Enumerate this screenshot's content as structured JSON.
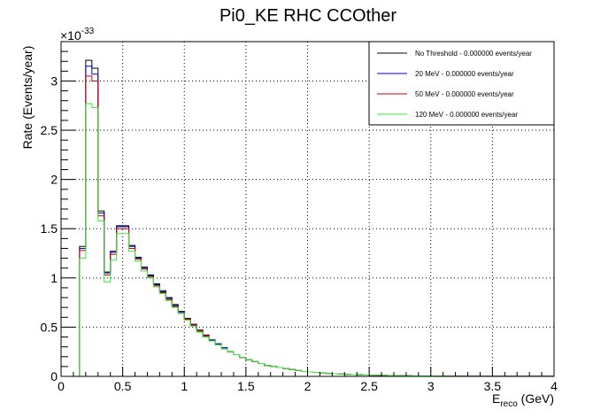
{
  "chart_data": {
    "type": "line",
    "title": "Pi0_KE RHC CCOther",
    "xlabel_main": "E",
    "xlabel_sub": "reco",
    "xlabel_unit": " (GeV)",
    "ylabel": "Rate (Events/year)",
    "y_exponent_base": "×10",
    "y_exponent_power": "-33",
    "xlim": [
      0,
      4
    ],
    "ylim": [
      0,
      3.4
    ],
    "x_ticks": [
      0,
      0.5,
      1,
      1.5,
      2,
      2.5,
      3,
      3.5,
      4
    ],
    "x_tick_labels": [
      "0",
      "0.5",
      "1",
      "1.5",
      "2",
      "2.5",
      "3",
      "3.5",
      "4"
    ],
    "y_ticks": [
      0,
      0.5,
      1,
      1.5,
      2,
      2.5,
      3
    ],
    "y_tick_labels": [
      "0",
      "0.5",
      "1",
      "1.5",
      "2",
      "2.5",
      "3"
    ],
    "grid": true,
    "legend_position": "top-right",
    "bin_width": 0.05,
    "bin_edges_start": 0,
    "series": [
      {
        "name": "No Threshold - 0.000000 events/year",
        "color": "#000000",
        "values": [
          0,
          0,
          0,
          1.32,
          3.21,
          3.13,
          1.68,
          1.06,
          1.27,
          1.53,
          1.53,
          1.33,
          1.21,
          1.11,
          1.03,
          0.94,
          0.87,
          0.8,
          0.73,
          0.66,
          0.59,
          0.53,
          0.47,
          0.42,
          0.37,
          0.33,
          0.29,
          0.25,
          0.22,
          0.19,
          0.17,
          0.15,
          0.13,
          0.11,
          0.1,
          0.09,
          0.08,
          0.07,
          0.06,
          0.05,
          0.045,
          0.04,
          0.035,
          0.03,
          0.027,
          0.024,
          0.021,
          0.018,
          0.016,
          0.014,
          0.012,
          0.011,
          0.01,
          0.009,
          0.008,
          0.007,
          0.006,
          0.005,
          0.005,
          0.004,
          0.004,
          0.003,
          0.003,
          0.003,
          0.002,
          0.002,
          0.002,
          0.002,
          0.001,
          0.001,
          0.001,
          0.001,
          0.001,
          0.001,
          0.001,
          0.001,
          0.001,
          0.001,
          0.001,
          0.001
        ]
      },
      {
        "name": "20 MeV - 0.000000 events/year",
        "color": "#0000cc",
        "values": [
          0,
          0,
          0,
          1.3,
          3.15,
          3.07,
          1.66,
          1.05,
          1.26,
          1.52,
          1.52,
          1.32,
          1.2,
          1.1,
          1.02,
          0.93,
          0.86,
          0.79,
          0.72,
          0.65,
          0.58,
          0.52,
          0.46,
          0.41,
          0.37,
          0.33,
          0.29,
          0.25,
          0.22,
          0.19,
          0.17,
          0.15,
          0.13,
          0.11,
          0.1,
          0.09,
          0.08,
          0.07,
          0.06,
          0.05,
          0.045,
          0.04,
          0.035,
          0.03,
          0.027,
          0.024,
          0.021,
          0.018,
          0.016,
          0.014,
          0.012,
          0.011,
          0.01,
          0.009,
          0.008,
          0.007,
          0.006,
          0.005,
          0.005,
          0.004,
          0.004,
          0.003,
          0.003,
          0.003,
          0.002,
          0.002,
          0.002,
          0.002,
          0.001,
          0.001,
          0.001,
          0.001,
          0.001,
          0.001,
          0.001,
          0.001,
          0.001,
          0.001,
          0.001,
          0.001
        ]
      },
      {
        "name": "50 MeV - 0.000000 events/year",
        "color": "#cc0000",
        "values": [
          0,
          0,
          0,
          1.28,
          3.05,
          3.0,
          1.63,
          1.03,
          1.24,
          1.5,
          1.5,
          1.3,
          1.19,
          1.09,
          1.01,
          0.92,
          0.85,
          0.78,
          0.71,
          0.64,
          0.58,
          0.52,
          0.46,
          0.41,
          0.36,
          0.32,
          0.28,
          0.25,
          0.22,
          0.19,
          0.17,
          0.15,
          0.13,
          0.11,
          0.1,
          0.09,
          0.08,
          0.07,
          0.06,
          0.05,
          0.045,
          0.04,
          0.035,
          0.03,
          0.027,
          0.024,
          0.021,
          0.018,
          0.016,
          0.014,
          0.012,
          0.011,
          0.01,
          0.009,
          0.008,
          0.007,
          0.006,
          0.005,
          0.005,
          0.004,
          0.004,
          0.003,
          0.003,
          0.003,
          0.002,
          0.002,
          0.002,
          0.002,
          0.001,
          0.001,
          0.001,
          0.001,
          0.001,
          0.001,
          0.001,
          0.001,
          0.001,
          0.001,
          0.001,
          0.001
        ]
      },
      {
        "name": "120 MeV - 0.000000 events/year",
        "color": "#33ee33",
        "values": [
          0,
          0,
          0,
          1.2,
          2.77,
          2.73,
          1.58,
          0.96,
          1.18,
          1.45,
          1.45,
          1.27,
          1.17,
          1.07,
          1.0,
          0.91,
          0.84,
          0.77,
          0.7,
          0.64,
          0.57,
          0.51,
          0.45,
          0.4,
          0.36,
          0.32,
          0.28,
          0.25,
          0.22,
          0.19,
          0.17,
          0.15,
          0.13,
          0.11,
          0.1,
          0.09,
          0.08,
          0.07,
          0.06,
          0.05,
          0.045,
          0.04,
          0.035,
          0.03,
          0.027,
          0.024,
          0.021,
          0.018,
          0.016,
          0.014,
          0.012,
          0.011,
          0.01,
          0.009,
          0.008,
          0.007,
          0.006,
          0.005,
          0.005,
          0.004,
          0.004,
          0.003,
          0.003,
          0.003,
          0.002,
          0.002,
          0.002,
          0.002,
          0.001,
          0.001,
          0.001,
          0.001,
          0.001,
          0.001,
          0.001,
          0.001,
          0.001,
          0.001,
          0.001,
          0.001
        ]
      }
    ]
  }
}
